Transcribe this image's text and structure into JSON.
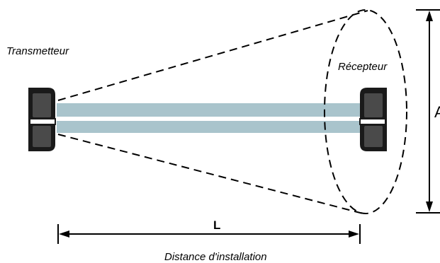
{
  "labels": {
    "transmitter": "Transmetteur",
    "receiver": "Récepteur",
    "length_symbol": "L",
    "width_symbol_partial": "A",
    "distance_caption": "Distance d'installation"
  },
  "colors": {
    "beam": "#a9c4cc",
    "device_body": "#1a1a1a",
    "device_lens": "#4a4a4a",
    "lines": "#000000",
    "background": "#ffffff"
  },
  "icons": {
    "transmitter": "transmitter-unit-icon",
    "receiver": "receiver-unit-icon"
  }
}
